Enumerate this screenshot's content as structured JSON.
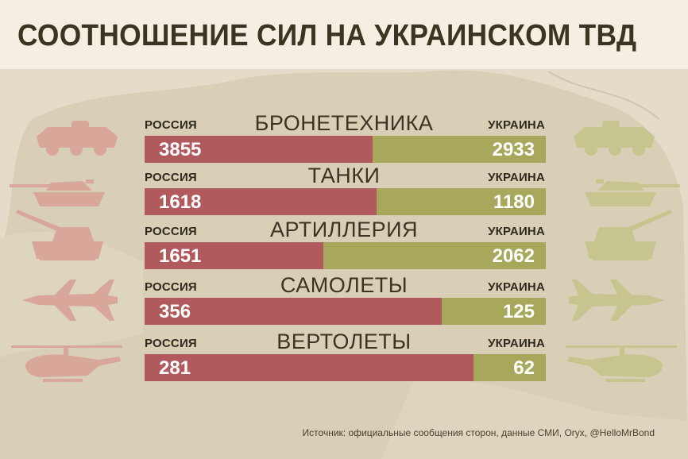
{
  "title": "СООТНОШЕНИЕ СИЛ НА УКРАИНСКОМ ТВД",
  "labels": {
    "left": "РОССИЯ",
    "right": "УКРАИНА"
  },
  "source": "Источник: официальные сообщения сторон, данные СМИ, Oryx, @HelloMrBond",
  "colors": {
    "russia": "#b05a5e",
    "ukraine": "#a7a85c",
    "background": "#e4dcc8",
    "header": "#f4efe2"
  },
  "chart_data": {
    "type": "bar",
    "orientation": "horizontal",
    "stacked": true,
    "normalized": true,
    "categories": [
      "БРОНЕТЕХНИКА",
      "ТАНКИ",
      "АРТИЛЛЕРИЯ",
      "САМОЛЕТЫ",
      "ВЕРТОЛЕТЫ"
    ],
    "series": [
      {
        "name": "РОССИЯ",
        "values": [
          3855,
          1618,
          1651,
          356,
          281
        ]
      },
      {
        "name": "УКРАИНА",
        "values": [
          2933,
          1180,
          2062,
          125,
          62
        ]
      }
    ],
    "icons": {
      "russia": [
        "apc-icon",
        "tank-icon",
        "artillery-icon",
        "jet-icon",
        "helicopter-icon"
      ],
      "ukraine": [
        "apc-icon",
        "tank-icon",
        "artillery-icon",
        "jet-icon",
        "helicopter-icon"
      ]
    }
  }
}
